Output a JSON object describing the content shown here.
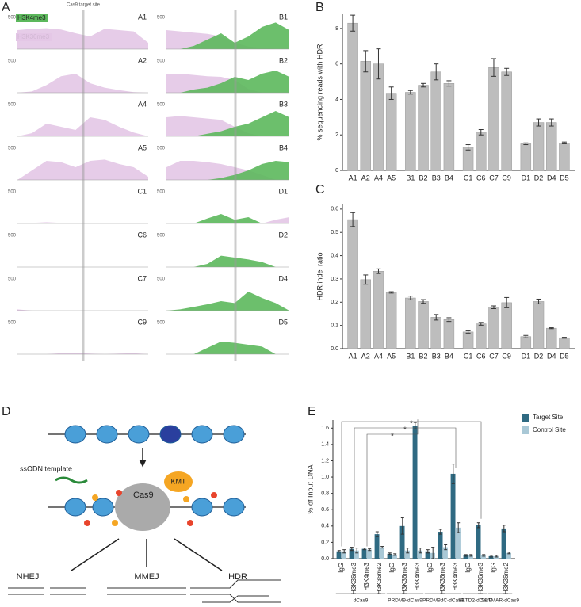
{
  "panels": [
    "A",
    "B",
    "C",
    "D",
    "E"
  ],
  "tracks_header": {
    "target": "Cas9 target site",
    "h3k4me3": "H3K4me3",
    "h3k36me3": "H3K36me3",
    "h3k4me3_color": "#5cb85c",
    "h3k36me3_color": "#e3c6e6"
  },
  "track_ylim": [
    0,
    500
  ],
  "track_yticks": [
    500
  ],
  "tracks": [
    {
      "id": "A1",
      "h3k36me3": [
        300,
        320,
        330,
        310,
        250,
        200,
        320,
        300,
        280,
        100
      ]
    },
    {
      "id": "A2",
      "h3k36me3": [
        0,
        20,
        120,
        260,
        300,
        150,
        80,
        40,
        10,
        0
      ]
    },
    {
      "id": "A4",
      "h3k36me3": [
        0,
        50,
        200,
        150,
        100,
        300,
        260,
        150,
        60,
        0
      ]
    },
    {
      "id": "A5",
      "h3k36me3": [
        0,
        150,
        300,
        280,
        200,
        300,
        320,
        250,
        200,
        50
      ]
    },
    {
      "id": "C1",
      "h3k36me3": [
        0,
        10,
        20,
        10,
        0,
        0,
        0,
        0,
        0,
        0
      ]
    },
    {
      "id": "C6",
      "h3k36me3": [
        0,
        0,
        0,
        0,
        0,
        0,
        0,
        0,
        0,
        0
      ]
    },
    {
      "id": "C7",
      "h3k36me3": [
        20,
        0,
        0,
        0,
        0,
        0,
        0,
        0,
        0,
        0
      ]
    },
    {
      "id": "C9",
      "h3k36me3": [
        0,
        0,
        0,
        15,
        20,
        10,
        0,
        10,
        15,
        0
      ]
    },
    {
      "id": "B1",
      "h3k36me3": [
        300,
        280,
        260,
        240,
        200,
        100,
        40,
        20,
        0,
        0
      ],
      "h3k4me3": [
        0,
        0,
        50,
        150,
        250,
        100,
        200,
        350,
        420,
        300
      ]
    },
    {
      "id": "B2",
      "h3k36me3": [
        300,
        300,
        280,
        260,
        250,
        200,
        60,
        0,
        0,
        0
      ],
      "h3k4me3": [
        0,
        0,
        50,
        80,
        150,
        250,
        200,
        300,
        350,
        250
      ]
    },
    {
      "id": "B3",
      "h3k36me3": [
        300,
        320,
        300,
        280,
        260,
        150,
        50,
        0,
        0,
        0
      ],
      "h3k4me3": [
        0,
        0,
        0,
        40,
        80,
        150,
        200,
        300,
        400,
        300
      ]
    },
    {
      "id": "B4",
      "h3k36me3": [
        200,
        300,
        300,
        280,
        250,
        200,
        150,
        80,
        0,
        0
      ],
      "h3k4me3": [
        0,
        0,
        0,
        0,
        30,
        80,
        150,
        250,
        300,
        280
      ]
    },
    {
      "id": "D1",
      "h3k36me3": [
        0,
        0,
        0,
        0,
        0,
        0,
        0,
        0,
        60,
        100
      ],
      "h3k4me3": [
        0,
        0,
        0,
        80,
        150,
        60,
        100,
        0,
        0,
        0
      ]
    },
    {
      "id": "D2",
      "h3k4me3": [
        0,
        0,
        0,
        50,
        180,
        150,
        120,
        80,
        0,
        0
      ]
    },
    {
      "id": "D4",
      "h3k4me3": [
        0,
        20,
        60,
        100,
        150,
        120,
        300,
        200,
        120,
        0
      ]
    },
    {
      "id": "D5",
      "h3k4me3": [
        0,
        0,
        0,
        100,
        200,
        180,
        150,
        120,
        0,
        0
      ]
    }
  ],
  "chart_data": [
    {
      "type": "bar",
      "ylabel": "% sequencing reads with HDR",
      "categories": [
        "A1",
        "A2",
        "A4",
        "A5",
        "B1",
        "B2",
        "B3",
        "B4",
        "C1",
        "C6",
        "C7",
        "C9",
        "D1",
        "D2",
        "D4",
        "D5"
      ],
      "values": [
        8.3,
        6.15,
        6.0,
        4.35,
        4.4,
        4.8,
        5.55,
        4.9,
        1.3,
        2.15,
        5.8,
        5.55,
        1.5,
        2.7,
        2.7,
        1.55
      ],
      "errors": [
        0.45,
        0.6,
        0.85,
        0.35,
        0.1,
        0.1,
        0.45,
        0.15,
        0.15,
        0.15,
        0.5,
        0.2,
        0.05,
        0.2,
        0.2,
        0.05
      ],
      "color": "#bdbdbd",
      "ylim": [
        0,
        8.8
      ],
      "yticks": [
        0,
        2,
        4,
        6,
        8
      ]
    },
    {
      "type": "bar",
      "ylabel": "HDR:indel ratio",
      "categories": [
        "A1",
        "A2",
        "A4",
        "A5",
        "B1",
        "B2",
        "B3",
        "B4",
        "C1",
        "C6",
        "C7",
        "C9",
        "D1",
        "D2",
        "D4",
        "D5"
      ],
      "values": [
        0.555,
        0.297,
        0.333,
        0.242,
        0.218,
        0.203,
        0.135,
        0.125,
        0.072,
        0.107,
        0.178,
        0.198,
        0.052,
        0.203,
        0.088,
        0.047
      ],
      "errors": [
        0.03,
        0.02,
        0.01,
        0.003,
        0.008,
        0.008,
        0.012,
        0.008,
        0.005,
        0.006,
        0.006,
        0.022,
        0.005,
        0.01,
        0.002,
        0.002
      ],
      "color": "#bdbdbd",
      "ylim": [
        0,
        0.62
      ],
      "yticks": [
        {
          "value": 0,
          "label": "0.0"
        },
        0.1,
        0.2,
        0.3,
        0.4,
        0.5,
        0.6
      ]
    },
    {
      "type": "grouped_bar",
      "ylabel": "% of Input DNA",
      "categories": [
        "IgG",
        "H3K36me3",
        "H3K4me3",
        "H3K36me2",
        "IgG",
        "H3K36me3",
        "H3K4me3",
        "IgG",
        "H3K36me3",
        "H3K4me3",
        "IgG",
        "H3K36me3",
        "IgG",
        "H3K36me2"
      ],
      "groups": [
        "dCas9",
        "dCas9",
        "dCas9",
        "dCas9",
        "PRDM9-dCas9",
        "PRDM9-dCas9",
        "PRDM9-dCas9",
        "PRDM9dC-dCas9",
        "PRDM9dC-dCas9",
        "PRDM9dC-dCas9",
        "SETD2-dCas9",
        "SETD2-dCas9",
        "SETMAR-dCas9",
        "SETMAR-dCas9"
      ],
      "series": [
        {
          "name": "Target Site",
          "color": "#2f6a82",
          "values": [
            0.09,
            0.12,
            0.12,
            0.3,
            0.06,
            0.4,
            1.63,
            0.09,
            0.33,
            1.04,
            0.04,
            0.41,
            0.03,
            0.37
          ],
          "errors": [
            0.01,
            0.02,
            0.01,
            0.03,
            0.01,
            0.1,
            0.04,
            0.02,
            0.03,
            0.12,
            0.01,
            0.03,
            0.01,
            0.04
          ]
        },
        {
          "name": "Control Site",
          "color": "#a9c8d6",
          "values": [
            0.09,
            0.1,
            0.11,
            0.14,
            0.05,
            0.1,
            0.1,
            0.07,
            0.14,
            0.38,
            0.04,
            0.04,
            0.03,
            0.07
          ],
          "errors": [
            0.02,
            0.03,
            0.01,
            0.01,
            0.01,
            0.03,
            0.03,
            0.07,
            0.03,
            0.06,
            0.01,
            0.01,
            0.01,
            0.01
          ]
        }
      ],
      "ylim": [
        0,
        1.7
      ],
      "yticks": [
        {
          "value": 0,
          "label": "0.0"
        },
        0.2,
        0.4,
        0.6,
        0.8,
        {
          "value": 1,
          "label": "1.0"
        },
        1.2,
        1.4,
        1.6
      ],
      "annotations": [
        "*",
        "*",
        "*"
      ],
      "legend": "upper right"
    }
  ],
  "diagram": {
    "ssodn": "ssODN template",
    "cas9": "Cas9",
    "kmt": "KMT",
    "outcomes": [
      "NHEJ",
      "MMEJ",
      "HDR"
    ]
  }
}
